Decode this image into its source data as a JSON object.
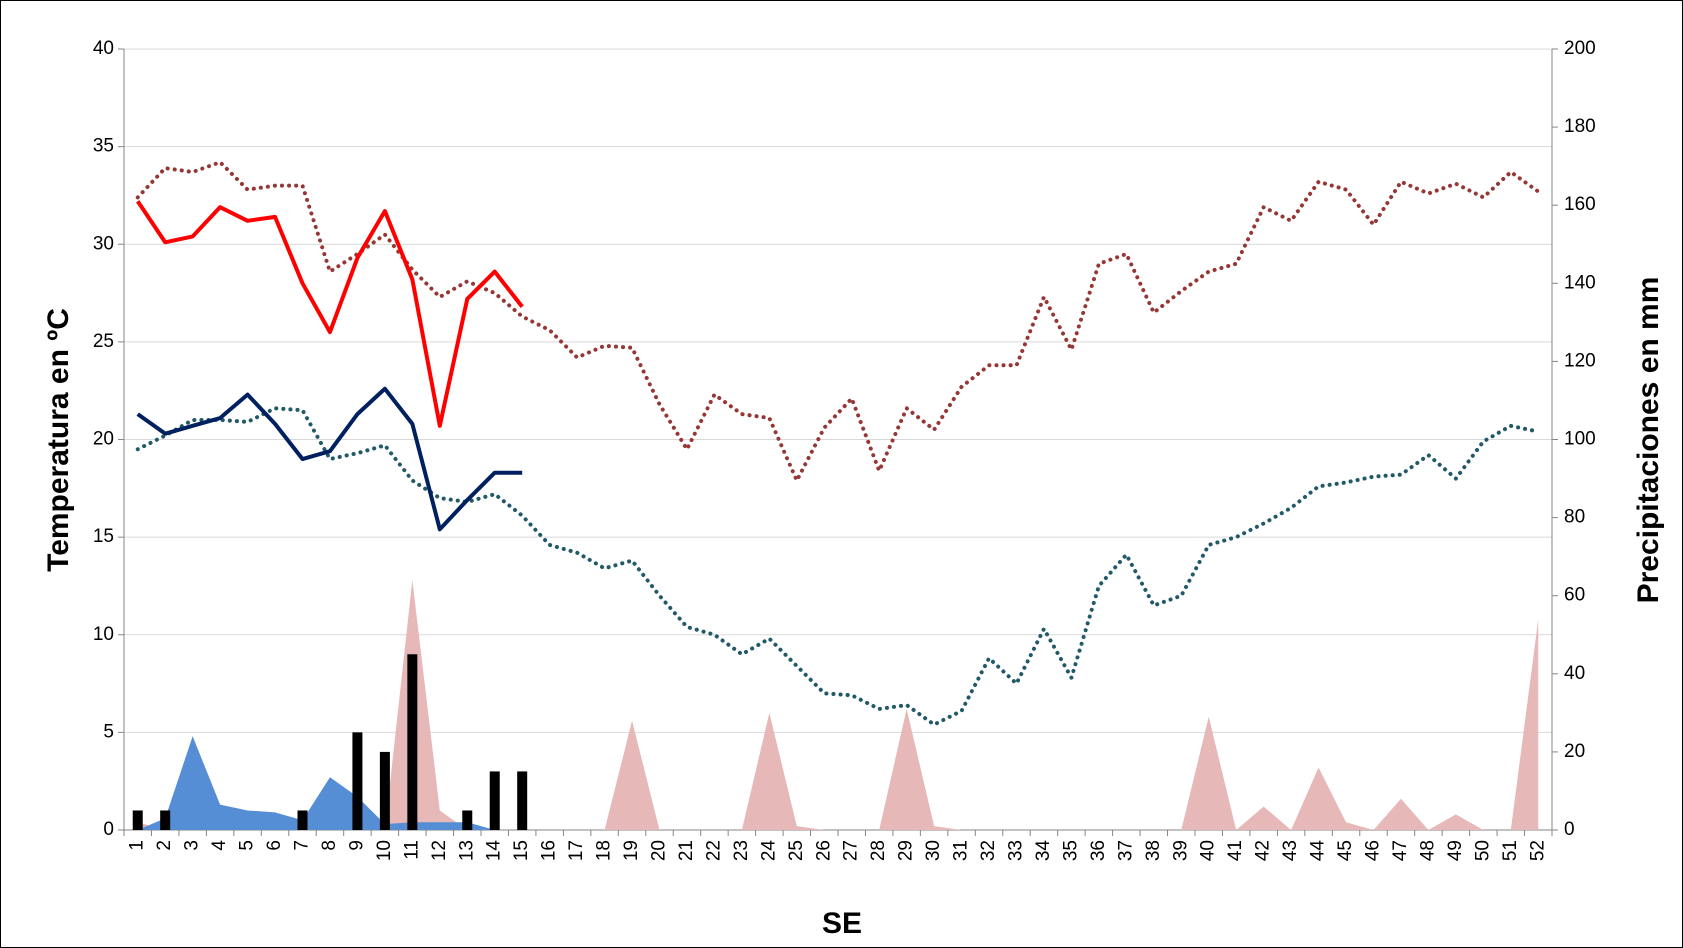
{
  "chart_data": {
    "type": "combo",
    "xlabel": "SE",
    "ylabel": "Temperatura en ºC",
    "y2label": "Precipitaciones en mm",
    "categories": [
      "1",
      "2",
      "3",
      "4",
      "5",
      "6",
      "7",
      "8",
      "9",
      "10",
      "11",
      "12",
      "13",
      "14",
      "15",
      "16",
      "17",
      "18",
      "19",
      "20",
      "21",
      "22",
      "23",
      "24",
      "25",
      "26",
      "27",
      "28",
      "29",
      "30",
      "31",
      "32",
      "33",
      "34",
      "35",
      "36",
      "37",
      "38",
      "39",
      "40",
      "41",
      "42",
      "43",
      "44",
      "45",
      "46",
      "47",
      "48",
      "49",
      "50",
      "51",
      "52"
    ],
    "ylim": [
      0,
      40
    ],
    "yticks": [
      0,
      5,
      10,
      15,
      20,
      25,
      30,
      35,
      40
    ],
    "y2lim": [
      0,
      200
    ],
    "y2ticks": [
      0,
      20,
      40,
      60,
      80,
      100,
      120,
      140,
      160,
      180,
      200
    ],
    "grid": true,
    "series": [
      {
        "kind": "area",
        "axis": "y2",
        "color": "#e6b8b7",
        "values": [
          2,
          0,
          0,
          0,
          0,
          0,
          0,
          0,
          0,
          0,
          64,
          5,
          0,
          0,
          0,
          0,
          0,
          0,
          28,
          0,
          0,
          0,
          0,
          30,
          1,
          0,
          0,
          0,
          31,
          1,
          0,
          0,
          0,
          0,
          0,
          0,
          0,
          0,
          0,
          29,
          0,
          6,
          0,
          16,
          2,
          0,
          8,
          0,
          4,
          0,
          0,
          54
        ]
      },
      {
        "kind": "area",
        "axis": "y2",
        "color": "#558ed5",
        "values": [
          0,
          3,
          24,
          6.5,
          5,
          4.5,
          2.5,
          13.5,
          8.5,
          1.5,
          2,
          2,
          2,
          0,
          0,
          null,
          null,
          null,
          null,
          null,
          null,
          null,
          null,
          null,
          null,
          null,
          null,
          null,
          null,
          null,
          null,
          null,
          null,
          null,
          null,
          null,
          null,
          null,
          null,
          null,
          null,
          null,
          null,
          null,
          null,
          null,
          null,
          null,
          null,
          null,
          null,
          null
        ]
      },
      {
        "kind": "bar",
        "color": "#000000",
        "values": [
          1,
          1,
          null,
          null,
          null,
          null,
          1,
          null,
          5,
          4,
          9,
          null,
          1,
          3,
          3,
          null,
          null,
          null,
          null,
          null,
          null,
          null,
          null,
          null,
          null,
          null,
          null,
          null,
          null,
          null,
          null,
          null,
          null,
          null,
          null,
          null,
          null,
          null,
          null,
          null,
          null,
          null,
          null,
          null,
          null,
          null,
          null,
          null,
          null,
          null,
          null,
          null
        ]
      },
      {
        "kind": "line",
        "style": "dotted",
        "color": "#953735",
        "values": [
          32.4,
          33.9,
          33.7,
          34.2,
          32.8,
          33.0,
          33.0,
          28.6,
          29.5,
          30.5,
          28.7,
          27.3,
          28.1,
          27.5,
          26.3,
          25.6,
          24.2,
          24.8,
          24.7,
          21.8,
          19.5,
          22.3,
          21.3,
          21.1,
          17.9,
          20.6,
          22.1,
          18.4,
          21.6,
          20.5,
          22.7,
          23.8,
          23.8,
          27.3,
          24.6,
          29.0,
          29.5,
          26.5,
          27.6,
          28.6,
          29.0,
          31.9,
          31.2,
          33.2,
          32.8,
          31.0,
          33.2,
          32.6,
          33.1,
          32.4,
          33.7,
          32.7
        ]
      },
      {
        "kind": "line",
        "style": "dotted",
        "color": "#215968",
        "values": [
          19.5,
          20.2,
          21.0,
          21.0,
          20.9,
          21.6,
          21.5,
          19.0,
          19.3,
          19.7,
          17.9,
          17.0,
          16.8,
          17.2,
          16.1,
          14.6,
          14.2,
          13.4,
          13.8,
          12.0,
          10.4,
          10.0,
          9.0,
          9.8,
          8.4,
          7.0,
          6.9,
          6.2,
          6.4,
          5.4,
          6.1,
          8.8,
          7.5,
          10.3,
          7.8,
          12.5,
          14.1,
          11.5,
          12.0,
          14.6,
          15.0,
          15.7,
          16.5,
          17.6,
          17.8,
          18.1,
          18.2,
          19.2,
          18.0,
          19.9,
          20.7,
          20.4
        ]
      },
      {
        "kind": "line",
        "style": "solid",
        "color": "#ff0000",
        "values": [
          32.2,
          30.1,
          30.4,
          31.9,
          31.2,
          31.4,
          28.0,
          25.5,
          29.3,
          31.7,
          28.2,
          20.7,
          27.2,
          28.6,
          26.8,
          null,
          null,
          null,
          null,
          null,
          null,
          null,
          null,
          null,
          null,
          null,
          null,
          null,
          null,
          null,
          null,
          null,
          null,
          null,
          null,
          null,
          null,
          null,
          null,
          null,
          null,
          null,
          null,
          null,
          null,
          null,
          null,
          null,
          null,
          null,
          null,
          null
        ]
      },
      {
        "kind": "line",
        "style": "solid",
        "color": "#002060",
        "values": [
          21.3,
          20.3,
          20.7,
          21.1,
          22.3,
          20.8,
          19.0,
          19.4,
          21.3,
          22.6,
          20.8,
          15.4,
          16.9,
          18.3,
          18.3,
          null,
          null,
          null,
          null,
          null,
          null,
          null,
          null,
          null,
          null,
          null,
          null,
          null,
          null,
          null,
          null,
          null,
          null,
          null,
          null,
          null,
          null,
          null,
          null,
          null,
          null,
          null,
          null,
          null,
          null,
          null,
          null,
          null,
          null,
          null,
          null,
          null
        ]
      }
    ]
  }
}
